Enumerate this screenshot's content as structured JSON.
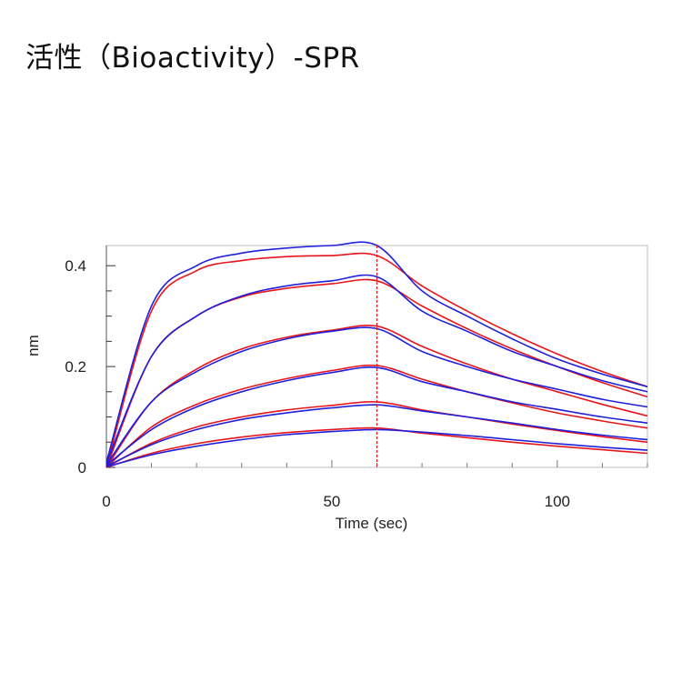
{
  "page": {
    "title": "活性（Bioactivity）-SPR"
  },
  "chart_data": {
    "type": "line",
    "xlabel": "Time (sec)",
    "ylabel": "nm",
    "xlim": [
      0,
      120
    ],
    "ylim": [
      0,
      0.44
    ],
    "x_ticks": [
      0,
      50,
      100
    ],
    "x_tick_labels": [
      "0",
      "50",
      "100"
    ],
    "y_ticks": [
      0,
      0.2,
      0.4
    ],
    "y_tick_labels": [
      "0",
      "0.2",
      "0.4"
    ],
    "grid": false,
    "legend": "none",
    "association_end_x": 60,
    "colors": {
      "measured": "#1f1fdc",
      "fit": "#e8151b",
      "marker": "#e8151b",
      "frame": "#bdbdbd"
    },
    "measured": [
      {
        "x": [
          0,
          10,
          20,
          30,
          40,
          50,
          60,
          70,
          80,
          90,
          100,
          110,
          120
        ],
        "y": [
          0.01,
          0.32,
          0.4,
          0.425,
          0.435,
          0.44,
          0.44,
          0.35,
          0.3,
          0.255,
          0.215,
          0.185,
          0.16
        ]
      },
      {
        "x": [
          0,
          10,
          20,
          30,
          40,
          50,
          60,
          70,
          80,
          90,
          100,
          110,
          120
        ],
        "y": [
          0.008,
          0.22,
          0.3,
          0.34,
          0.36,
          0.37,
          0.378,
          0.31,
          0.27,
          0.23,
          0.2,
          0.172,
          0.15
        ]
      },
      {
        "x": [
          0,
          10,
          20,
          30,
          40,
          50,
          60,
          70,
          80,
          90,
          100,
          110,
          120
        ],
        "y": [
          0.005,
          0.13,
          0.19,
          0.23,
          0.255,
          0.27,
          0.275,
          0.23,
          0.2,
          0.175,
          0.155,
          0.135,
          0.12
        ]
      },
      {
        "x": [
          0,
          10,
          20,
          30,
          40,
          50,
          60,
          70,
          80,
          90,
          100,
          110,
          120
        ],
        "y": [
          0.004,
          0.075,
          0.12,
          0.15,
          0.172,
          0.188,
          0.198,
          0.17,
          0.15,
          0.13,
          0.115,
          0.1,
          0.088
        ]
      },
      {
        "x": [
          0,
          10,
          20,
          30,
          40,
          50,
          60,
          70,
          80,
          90,
          100,
          110,
          120
        ],
        "y": [
          0.002,
          0.045,
          0.075,
          0.095,
          0.108,
          0.118,
          0.124,
          0.112,
          0.1,
          0.088,
          0.075,
          0.064,
          0.055
        ]
      },
      {
        "x": [
          0,
          10,
          20,
          30,
          40,
          50,
          60,
          70,
          80,
          90,
          100,
          110,
          120
        ],
        "y": [
          0.001,
          0.025,
          0.042,
          0.055,
          0.065,
          0.071,
          0.075,
          0.07,
          0.063,
          0.055,
          0.047,
          0.04,
          0.034
        ]
      }
    ],
    "fit": [
      {
        "x": [
          0,
          10,
          20,
          30,
          40,
          50,
          60,
          70,
          80,
          90,
          100,
          110,
          120
        ],
        "y": [
          0,
          0.31,
          0.39,
          0.41,
          0.418,
          0.42,
          0.42,
          0.36,
          0.31,
          0.265,
          0.225,
          0.19,
          0.16
        ]
      },
      {
        "x": [
          0,
          10,
          20,
          30,
          40,
          50,
          60,
          70,
          80,
          90,
          100,
          110,
          120
        ],
        "y": [
          0,
          0.22,
          0.3,
          0.338,
          0.355,
          0.364,
          0.37,
          0.32,
          0.275,
          0.235,
          0.2,
          0.168,
          0.14
        ]
      },
      {
        "x": [
          0,
          10,
          20,
          30,
          40,
          50,
          60,
          70,
          80,
          90,
          100,
          110,
          120
        ],
        "y": [
          0,
          0.13,
          0.195,
          0.235,
          0.258,
          0.272,
          0.28,
          0.24,
          0.205,
          0.175,
          0.15,
          0.125,
          0.102
        ]
      },
      {
        "x": [
          0,
          10,
          20,
          30,
          40,
          50,
          60,
          70,
          80,
          90,
          100,
          110,
          120
        ],
        "y": [
          0,
          0.08,
          0.125,
          0.155,
          0.176,
          0.192,
          0.202,
          0.175,
          0.15,
          0.128,
          0.108,
          0.092,
          0.078
        ]
      },
      {
        "x": [
          0,
          10,
          20,
          30,
          40,
          50,
          60,
          70,
          80,
          90,
          100,
          110,
          120
        ],
        "y": [
          0,
          0.048,
          0.08,
          0.1,
          0.114,
          0.123,
          0.13,
          0.114,
          0.1,
          0.086,
          0.073,
          0.061,
          0.05
        ]
      },
      {
        "x": [
          0,
          10,
          20,
          30,
          40,
          50,
          60,
          70,
          80,
          90,
          100,
          110,
          120
        ],
        "y": [
          0,
          0.028,
          0.047,
          0.06,
          0.069,
          0.075,
          0.078,
          0.068,
          0.059,
          0.05,
          0.042,
          0.035,
          0.028
        ]
      }
    ]
  }
}
